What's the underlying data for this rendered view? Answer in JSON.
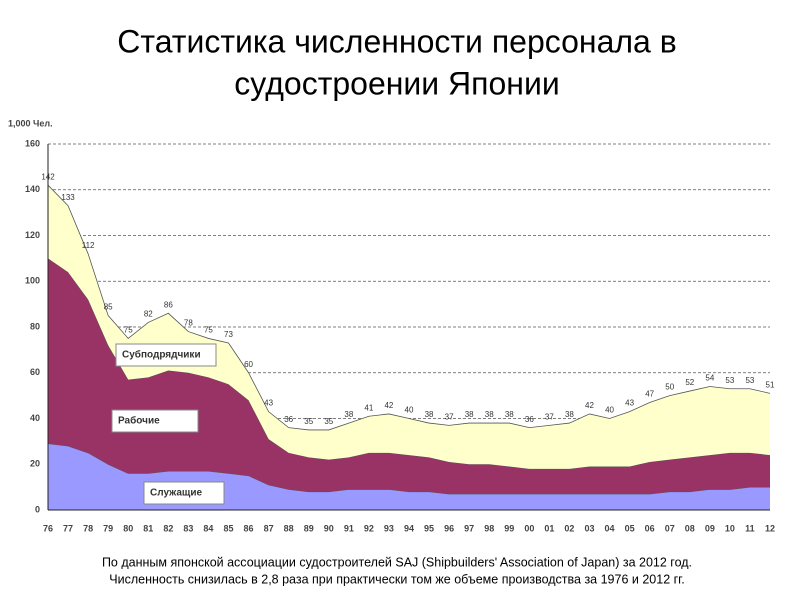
{
  "chart_data": {
    "type": "stacked-area",
    "title": "Статистика численности персонала в судостроении Японии",
    "y_unit": "1,000 Чел.",
    "categories": [
      "76",
      "77",
      "78",
      "79",
      "80",
      "81",
      "82",
      "83",
      "84",
      "85",
      "86",
      "87",
      "88",
      "89",
      "90",
      "91",
      "92",
      "93",
      "94",
      "95",
      "96",
      "97",
      "98",
      "99",
      "00",
      "01",
      "02",
      "03",
      "04",
      "05",
      "06",
      "07",
      "08",
      "09",
      "10",
      "11",
      "12"
    ],
    "series": [
      {
        "name": "Служащие",
        "color": "#9999ff",
        "values": [
          29,
          28,
          25,
          20,
          16,
          16,
          17,
          17,
          17,
          16,
          15,
          11,
          9,
          8,
          8,
          9,
          9,
          9,
          8,
          8,
          7,
          7,
          7,
          7,
          7,
          7,
          7,
          7,
          7,
          7,
          7,
          8,
          8,
          9,
          9,
          10,
          10
        ]
      },
      {
        "name": "Рабочие",
        "color": "#993366",
        "values": [
          81,
          76,
          67,
          52,
          41,
          42,
          44,
          43,
          41,
          39,
          33,
          20,
          16,
          15,
          14,
          14,
          16,
          16,
          16,
          15,
          14,
          13,
          13,
          12,
          11,
          11,
          11,
          12,
          12,
          12,
          14,
          14,
          15,
          15,
          16,
          15,
          14
        ]
      },
      {
        "name": "Субподрядчики",
        "color": "#ffffcc",
        "values": [
          32,
          29,
          20,
          13,
          18,
          24,
          25,
          18,
          17,
          18,
          12,
          12,
          11,
          12,
          13,
          15,
          16,
          17,
          16,
          15,
          16,
          18,
          18,
          19,
          18,
          19,
          20,
          23,
          21,
          24,
          26,
          28,
          29,
          30,
          28,
          28,
          27
        ]
      }
    ],
    "totals": [
      142,
      133,
      112,
      85,
      75,
      82,
      86,
      78,
      75,
      73,
      60,
      43,
      36,
      35,
      35,
      38,
      41,
      42,
      40,
      38,
      37,
      38,
      38,
      38,
      36,
      37,
      38,
      42,
      40,
      43,
      47,
      50,
      52,
      54,
      53,
      53,
      51
    ],
    "ylim": [
      0,
      160
    ],
    "yticks": [
      0,
      20,
      40,
      60,
      80,
      100,
      120,
      140,
      160
    ],
    "grid": true,
    "footnote": [
      "По данным японской ассоциации судостроителей SAJ (Shipbuilders' Association of Japan) за 2012 год.",
      "Численность снизилась в 2,8 раза при практически том же объеме производства за 1976 и 2012 гг."
    ]
  }
}
